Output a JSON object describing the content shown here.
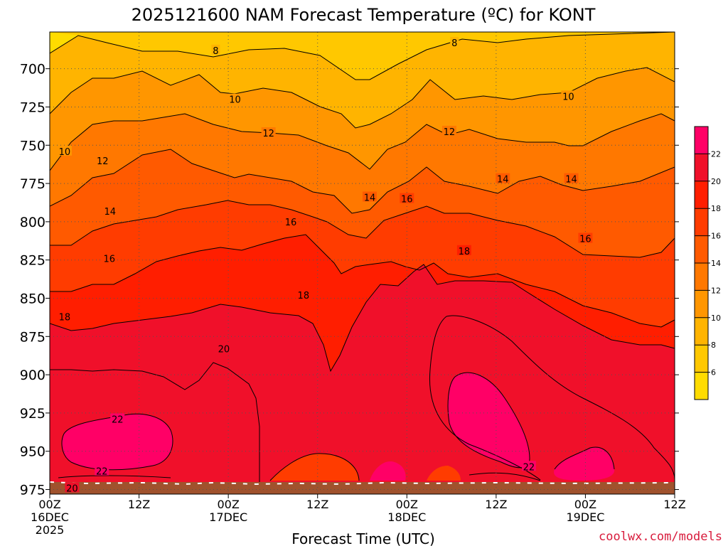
{
  "chart_data": {
    "type": "heatmap",
    "title": "2025121600 NAM Forecast Temperature (ºC) for KONT",
    "xlabel": "Forecast Time (UTC)",
    "credit": "coolwx.com/models",
    "x_ticks": [
      {
        "hours": 0,
        "label": "00Z",
        "sub": "16DEC",
        "sub2": "2025"
      },
      {
        "hours": 12,
        "label": "12Z",
        "sub": "",
        "sub2": ""
      },
      {
        "hours": 24,
        "label": "00Z",
        "sub": "17DEC",
        "sub2": ""
      },
      {
        "hours": 36,
        "label": "12Z",
        "sub": "",
        "sub2": ""
      },
      {
        "hours": 48,
        "label": "00Z",
        "sub": "18DEC",
        "sub2": ""
      },
      {
        "hours": 60,
        "label": "12Z",
        "sub": "",
        "sub2": ""
      },
      {
        "hours": 72,
        "label": "00Z",
        "sub": "19DEC",
        "sub2": ""
      },
      {
        "hours": 84,
        "label": "12Z",
        "sub": "",
        "sub2": ""
      }
    ],
    "x_range_hours": [
      0,
      84
    ],
    "y_pressure_levels": [
      700,
      725,
      750,
      775,
      800,
      825,
      850,
      875,
      900,
      925,
      950,
      975
    ],
    "y_range_hpa": [
      676,
      978
    ],
    "colorbar": {
      "labels": [
        6,
        8,
        10,
        12,
        14,
        16,
        18,
        20,
        22
      ],
      "colors": [
        "#ffdc00",
        "#ffc800",
        "#ffb400",
        "#ff9600",
        "#ff7800",
        "#ff5a00",
        "#ff3c00",
        "#ff1e00",
        "#f0102a",
        "#ff0066"
      ]
    },
    "contour_labels": [
      {
        "text": "8",
        "h": 22.3,
        "p": 688
      },
      {
        "text": "8",
        "h": 54.4,
        "p": 683
      },
      {
        "text": "10",
        "h": 24.9,
        "p": 720
      },
      {
        "text": "10",
        "h": 2.0,
        "p": 754
      },
      {
        "text": "10",
        "h": 69.7,
        "p": 718
      },
      {
        "text": "12",
        "h": 29.4,
        "p": 742
      },
      {
        "text": "12",
        "h": 7.1,
        "p": 760
      },
      {
        "text": "12",
        "h": 53.7,
        "p": 741
      },
      {
        "text": "14",
        "h": 8.1,
        "p": 793
      },
      {
        "text": "14",
        "h": 43.0,
        "p": 784
      },
      {
        "text": "14",
        "h": 60.9,
        "p": 772
      },
      {
        "text": "14",
        "h": 70.1,
        "p": 772
      },
      {
        "text": "16",
        "h": 32.4,
        "p": 800
      },
      {
        "text": "16",
        "h": 8.0,
        "p": 824
      },
      {
        "text": "16",
        "h": 48.0,
        "p": 785
      },
      {
        "text": "16",
        "h": 72.0,
        "p": 811
      },
      {
        "text": "18",
        "h": 34.1,
        "p": 848
      },
      {
        "text": "18",
        "h": 2.0,
        "p": 862
      },
      {
        "text": "18",
        "h": 55.7,
        "p": 819
      },
      {
        "text": "20",
        "h": 23.4,
        "p": 883
      },
      {
        "text": "20",
        "h": 3.0,
        "p": 974
      },
      {
        "text": "22",
        "h": 9.1,
        "p": 929
      },
      {
        "text": "22",
        "h": 7.0,
        "p": 963
      },
      {
        "text": "22",
        "h": 64.4,
        "p": 960
      }
    ]
  }
}
